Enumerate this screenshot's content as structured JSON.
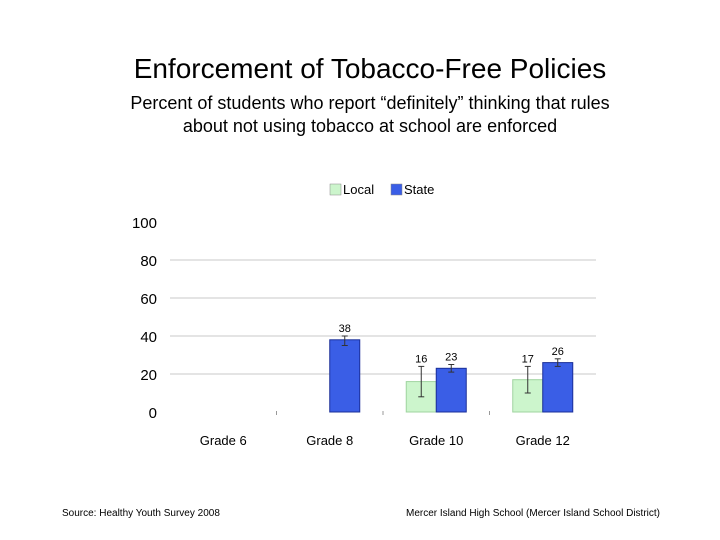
{
  "header": {
    "title": "Enforcement of Tobacco-Free Policies",
    "subtitle_line1": "Percent of students who report “definitely” thinking that rules",
    "subtitle_line2": "about not using tobacco at school are enforced"
  },
  "footer": {
    "source": "Source: Healthy Youth Survey 2008",
    "school": "Mercer Island High School (Mercer Island School District)"
  },
  "chart_data": {
    "type": "bar",
    "categories": [
      "Grade 6",
      "Grade 8",
      "Grade 10",
      "Grade 12"
    ],
    "series": [
      {
        "name": "Local",
        "color": "#ccf5cc",
        "values": [
          null,
          null,
          16,
          17
        ],
        "error_low": [
          null,
          null,
          8,
          10
        ],
        "error_high": [
          null,
          null,
          24,
          24
        ]
      },
      {
        "name": "State",
        "color": "#3a5ee6",
        "values": [
          null,
          38,
          23,
          26
        ],
        "error_low": [
          null,
          35,
          21,
          24
        ],
        "error_high": [
          null,
          40,
          25,
          28
        ]
      }
    ],
    "ylim": [
      0,
      100
    ],
    "yticks": [
      0,
      20,
      40,
      60,
      80,
      100
    ],
    "grid": true,
    "legend_position": "top"
  }
}
